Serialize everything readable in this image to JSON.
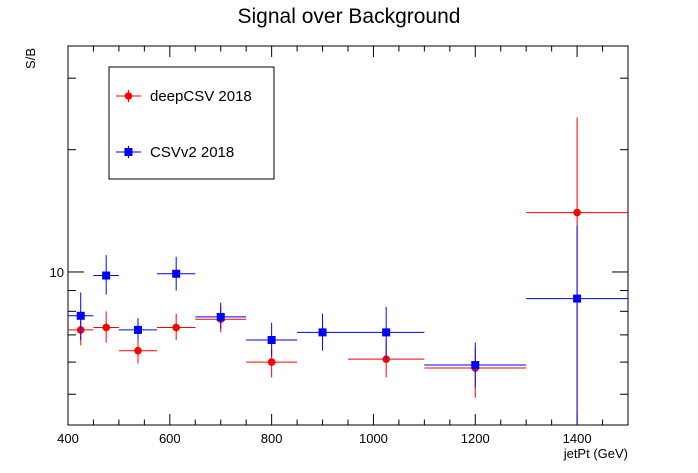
{
  "chart_data": {
    "type": "scatter",
    "title": "Signal over Background",
    "xlabel": "jetPt (GeV)",
    "ylabel": "S/B",
    "xlim": [
      400,
      1500
    ],
    "ylim": [
      4.2,
      36
    ],
    "y_scale": "log",
    "x_tick_labels": [
      "400",
      "600",
      "800",
      "1000",
      "1200",
      "1400"
    ],
    "y_tick_labels": [
      "10"
    ],
    "legend_position": "top-left",
    "series": [
      {
        "name": "deepCSV 2018",
        "color": "#ff0000",
        "marker": "circle",
        "points": [
          {
            "x": 425,
            "xlo": 400,
            "xhi": 450,
            "y": 7.2,
            "ylo": 6.6,
            "yhi": 8.0
          },
          {
            "x": 475,
            "xlo": 450,
            "xhi": 500,
            "y": 7.3,
            "ylo": 6.7,
            "yhi": 8.0
          },
          {
            "x": 537.5,
            "xlo": 500,
            "xhi": 575,
            "y": 6.4,
            "ylo": 5.95,
            "yhi": 6.9
          },
          {
            "x": 612.5,
            "xlo": 575,
            "xhi": 650,
            "y": 7.3,
            "ylo": 6.8,
            "yhi": 7.9
          },
          {
            "x": 700,
            "xlo": 650,
            "xhi": 750,
            "y": 7.65,
            "ylo": 7.1,
            "yhi": 8.2
          },
          {
            "x": 800,
            "xlo": 750,
            "xhi": 850,
            "y": 6.0,
            "ylo": 5.5,
            "yhi": 6.5
          },
          {
            "x": 1025,
            "xlo": 950,
            "xhi": 1100,
            "y": 6.1,
            "ylo": 5.5,
            "yhi": 6.8
          },
          {
            "x": 1200,
            "xlo": 1100,
            "xhi": 1300,
            "y": 5.8,
            "ylo": 4.9,
            "yhi": 6.5
          },
          {
            "x": 1400,
            "xlo": 1300,
            "xhi": 1500,
            "y": 14.0,
            "ylo": 4.2,
            "yhi": 24.0
          }
        ]
      },
      {
        "name": "CSVv2 2018",
        "color": "#0000ff",
        "marker": "square",
        "points": [
          {
            "x": 425,
            "xlo": 400,
            "xhi": 450,
            "y": 7.8,
            "ylo": 6.8,
            "yhi": 8.9
          },
          {
            "x": 475,
            "xlo": 450,
            "xhi": 500,
            "y": 9.8,
            "ylo": 8.8,
            "yhi": 11.0
          },
          {
            "x": 537.5,
            "xlo": 500,
            "xhi": 575,
            "y": 7.2,
            "ylo": 6.8,
            "yhi": 7.7
          },
          {
            "x": 612.5,
            "xlo": 575,
            "xhi": 650,
            "y": 9.9,
            "ylo": 9.0,
            "yhi": 10.9
          },
          {
            "x": 700,
            "xlo": 650,
            "xhi": 750,
            "y": 7.75,
            "ylo": 7.25,
            "yhi": 8.4
          },
          {
            "x": 800,
            "xlo": 750,
            "xhi": 850,
            "y": 6.8,
            "ylo": 6.2,
            "yhi": 7.5
          },
          {
            "x": 900,
            "xlo": 850,
            "xhi": 950,
            "y": 7.1,
            "ylo": 6.4,
            "yhi": 7.9
          },
          {
            "x": 1025,
            "xlo": 950,
            "xhi": 1100,
            "y": 7.1,
            "ylo": 6.1,
            "yhi": 8.2
          },
          {
            "x": 1200,
            "xlo": 1100,
            "xhi": 1300,
            "y": 5.9,
            "ylo": 5.2,
            "yhi": 6.7
          },
          {
            "x": 1400,
            "xlo": 1300,
            "xhi": 1500,
            "y": 8.6,
            "ylo": 4.2,
            "yhi": 13.0
          }
        ]
      }
    ]
  }
}
